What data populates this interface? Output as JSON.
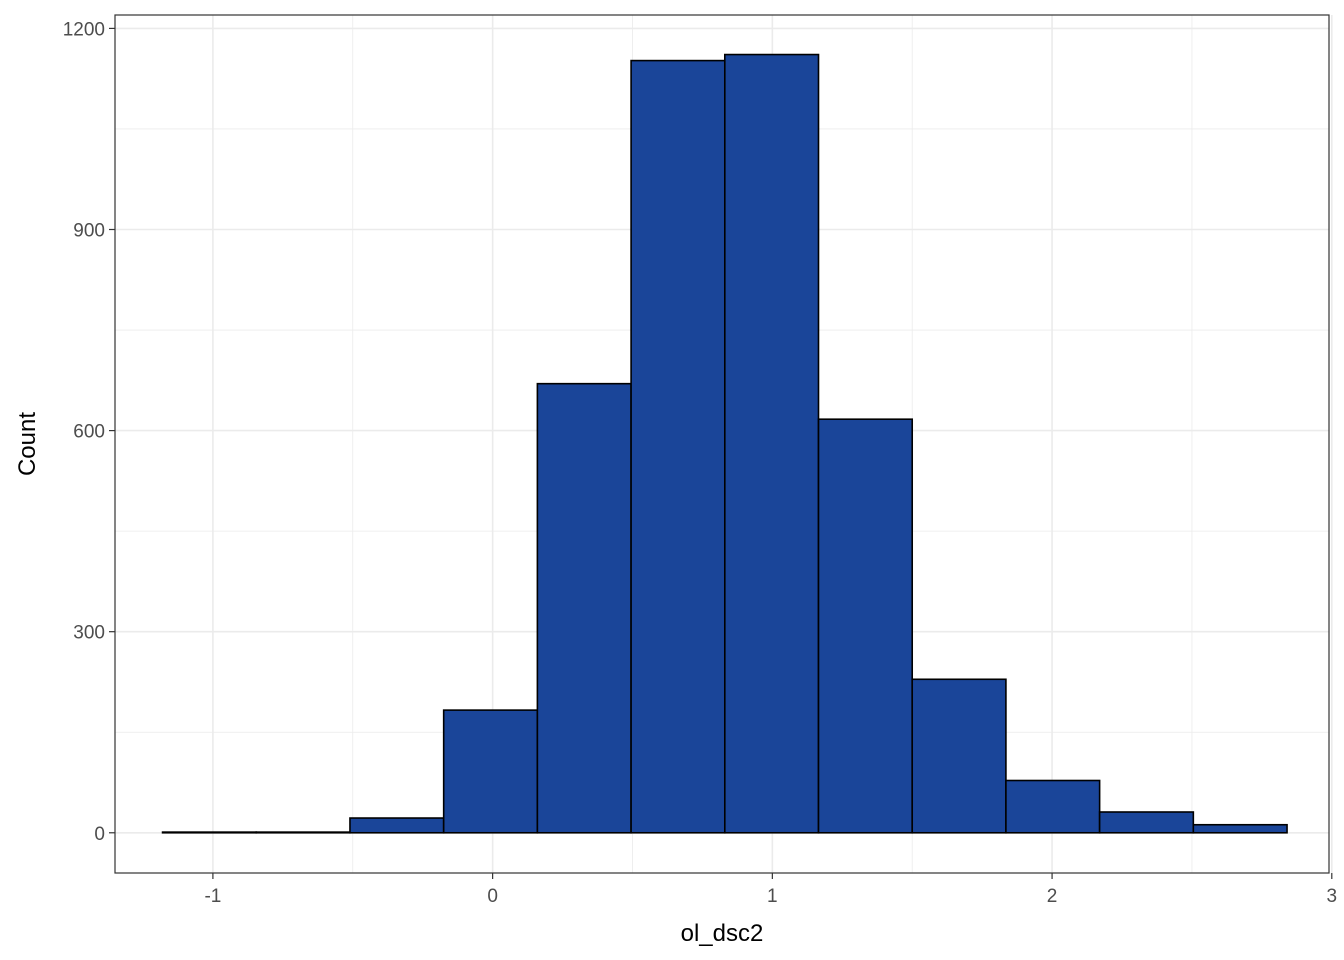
{
  "chart_data": {
    "type": "bar",
    "subtype": "histogram",
    "title": "",
    "xlabel": "ol_dsc2",
    "ylabel": "Count",
    "xlim": [
      -1.35,
      2.99
    ],
    "ylim": [
      -60,
      1220
    ],
    "x_ticks": [
      -1,
      0,
      1,
      2,
      3
    ],
    "x_tick_labels": [
      "-1",
      "0",
      "1",
      "2",
      "3"
    ],
    "y_ticks": [
      0,
      300,
      600,
      900,
      1200
    ],
    "y_tick_labels": [
      "0",
      "300",
      "600",
      "900",
      "1200"
    ],
    "bins": [
      {
        "x0": -1.18,
        "x1": -0.845,
        "count": 1
      },
      {
        "x0": -0.845,
        "x1": -0.51,
        "count": 1
      },
      {
        "x0": -0.51,
        "x1": -0.175,
        "count": 22
      },
      {
        "x0": -0.175,
        "x1": 0.16,
        "count": 183
      },
      {
        "x0": 0.16,
        "x1": 0.495,
        "count": 670
      },
      {
        "x0": 0.495,
        "x1": 0.83,
        "count": 1152
      },
      {
        "x0": 0.83,
        "x1": 1.165,
        "count": 1161
      },
      {
        "x0": 1.165,
        "x1": 1.5,
        "count": 617
      },
      {
        "x0": 1.5,
        "x1": 1.835,
        "count": 229
      },
      {
        "x0": 1.835,
        "x1": 2.17,
        "count": 78
      },
      {
        "x0": 2.17,
        "x1": 2.505,
        "count": 31
      },
      {
        "x0": 2.505,
        "x1": 2.84,
        "count": 12
      }
    ],
    "grid": true,
    "legend": "none",
    "colors": {
      "bar_fill": "#1a4599",
      "bar_outline": "#000000",
      "grid": "#ebebeb",
      "panel_border": "#333333",
      "background": "#ffffff"
    }
  }
}
